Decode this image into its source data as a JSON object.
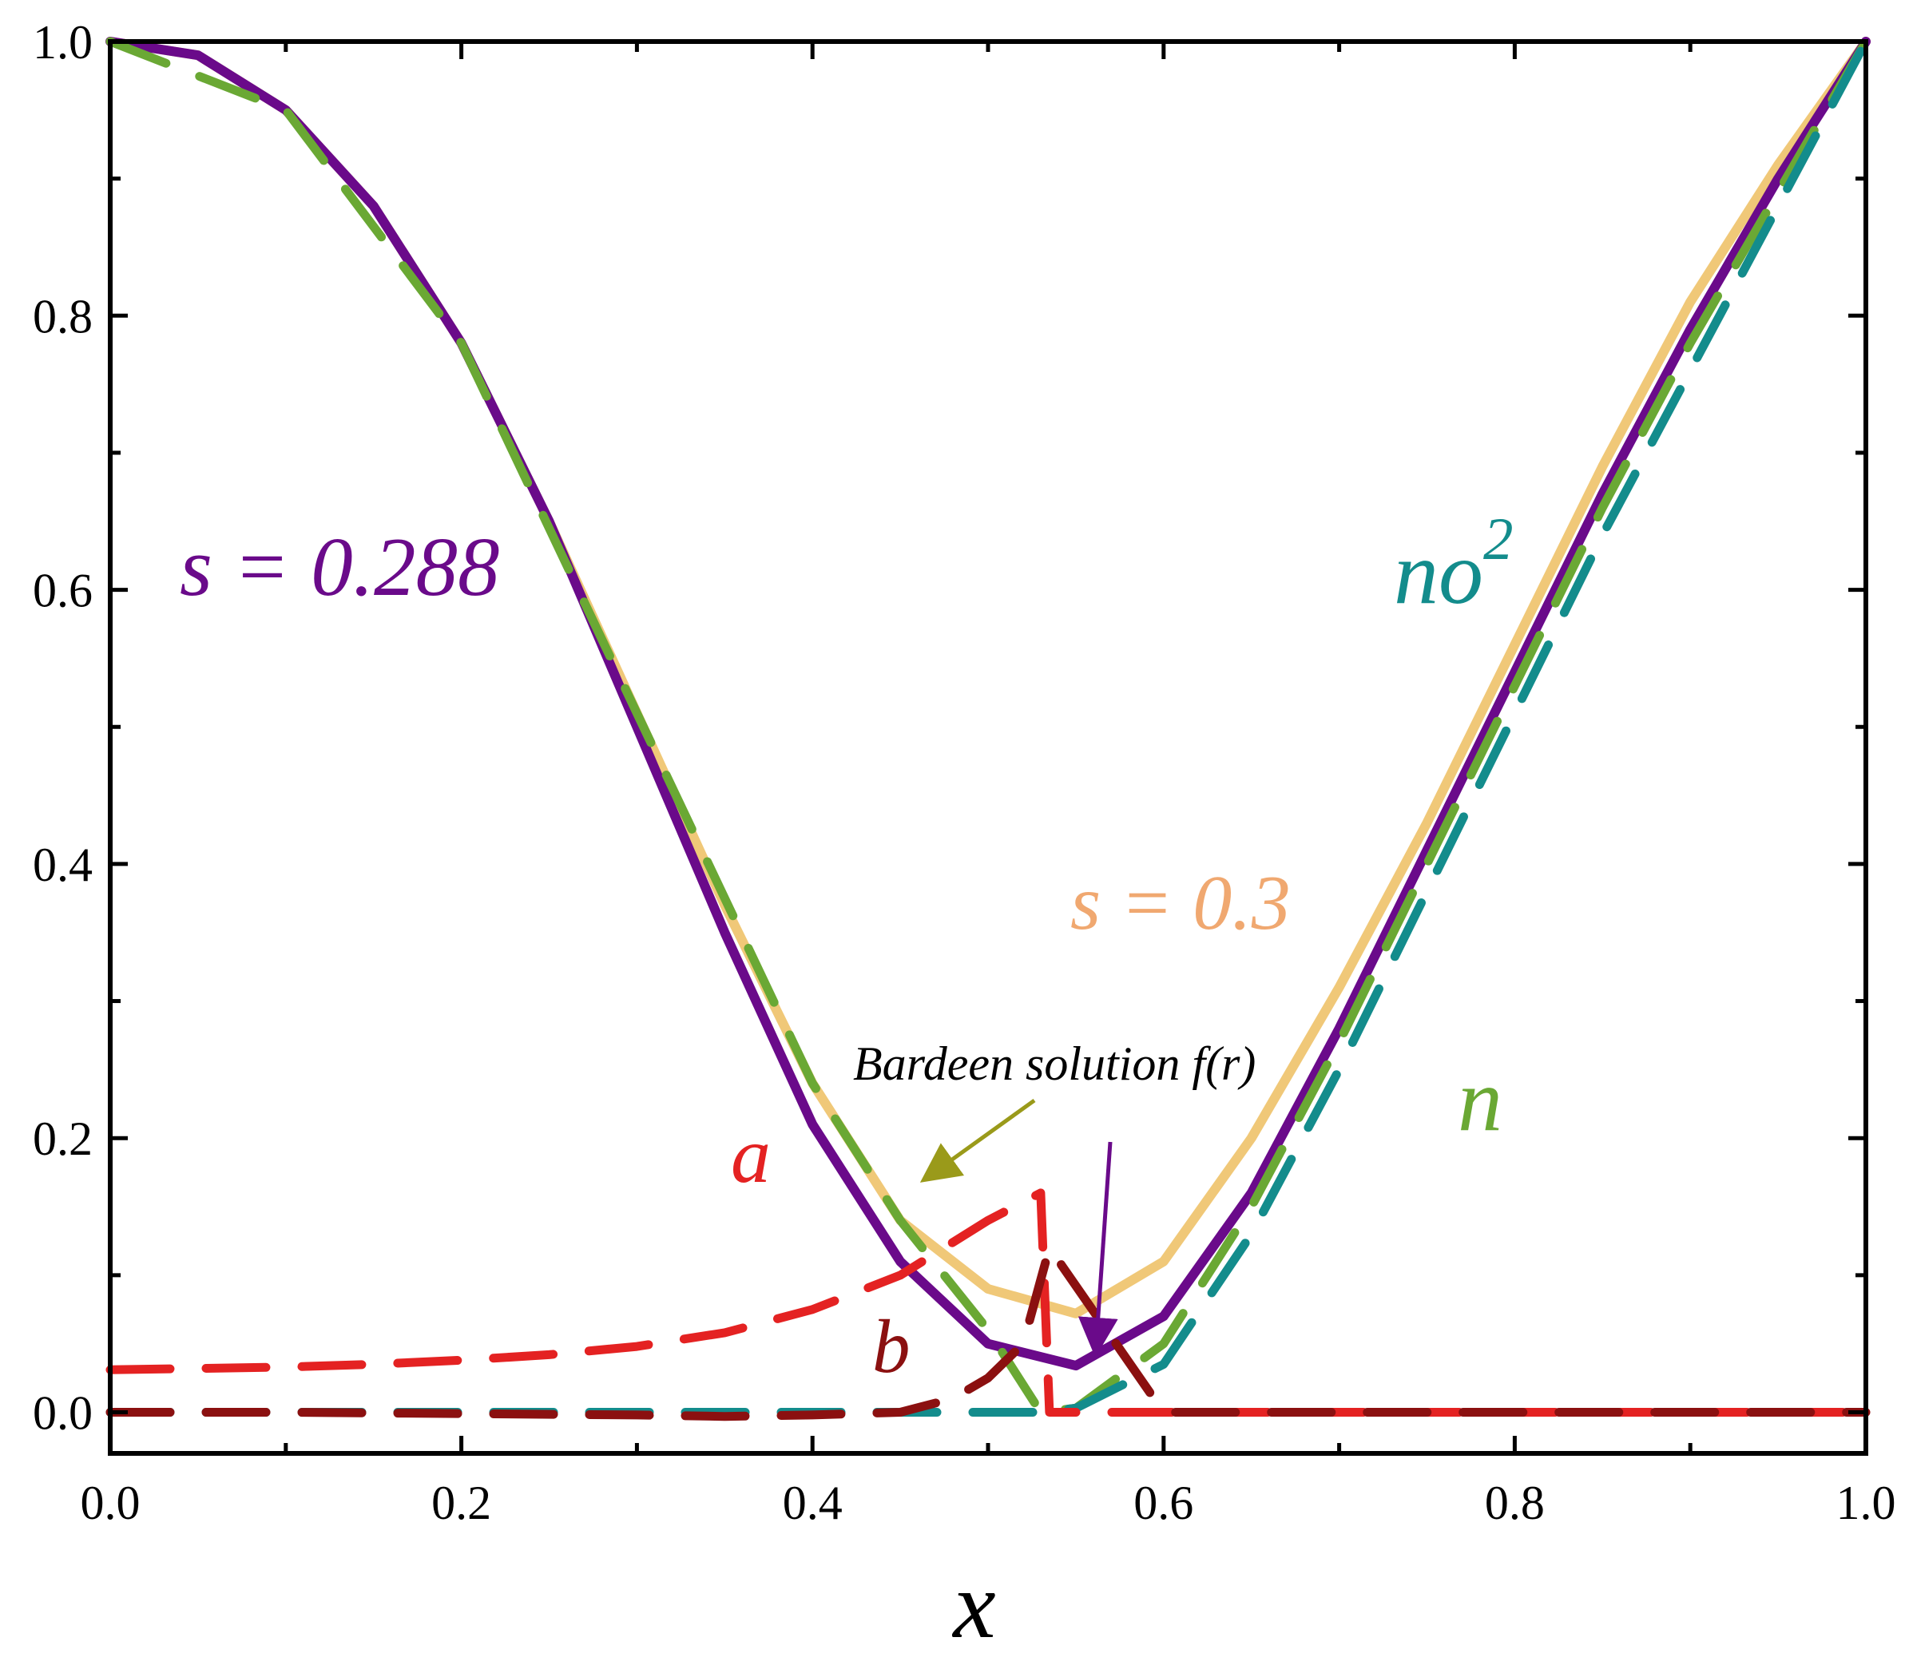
{
  "chart_data": {
    "type": "line",
    "title": "",
    "xlabel": "x",
    "ylabel": "",
    "xlim": [
      0.0,
      1.0
    ],
    "ylim": [
      -0.03,
      1.0
    ],
    "x_ticks": [
      0.0,
      0.2,
      0.4,
      0.6,
      0.8,
      1.0
    ],
    "x_tick_labels": [
      "0.0",
      "0.2",
      "0.4",
      "0.6",
      "0.8",
      "1.0"
    ],
    "y_ticks": [
      0.0,
      0.2,
      0.4,
      0.6,
      0.8,
      1.0
    ],
    "y_tick_labels": [
      "0.0",
      "0.2",
      "0.4",
      "0.6",
      "0.8",
      "1.0"
    ],
    "grid": false,
    "series": [
      {
        "name": "s = 0.3",
        "color": "#f0c878",
        "style": "solid",
        "x": [
          0,
          0.05,
          0.1,
          0.15,
          0.2,
          0.25,
          0.3,
          0.35,
          0.4,
          0.45,
          0.5,
          0.55,
          0.6,
          0.65,
          0.7,
          0.75,
          0.8,
          0.85,
          0.9,
          0.95,
          1.0
        ],
        "y": [
          1.0,
          0.99,
          0.95,
          0.88,
          0.78,
          0.65,
          0.51,
          0.37,
          0.24,
          0.14,
          0.09,
          0.072,
          0.11,
          0.2,
          0.31,
          0.43,
          0.56,
          0.69,
          0.81,
          0.91,
          1.0
        ]
      },
      {
        "name": "s = 0.288",
        "color": "#6a0a8a",
        "style": "solid",
        "x": [
          0,
          0.05,
          0.1,
          0.15,
          0.2,
          0.25,
          0.3,
          0.35,
          0.4,
          0.45,
          0.5,
          0.55,
          0.6,
          0.65,
          0.7,
          0.75,
          0.8,
          0.85,
          0.9,
          0.95,
          1.0
        ],
        "y": [
          1.0,
          0.99,
          0.95,
          0.88,
          0.78,
          0.65,
          0.5,
          0.35,
          0.21,
          0.11,
          0.05,
          0.034,
          0.07,
          0.16,
          0.28,
          0.41,
          0.54,
          0.67,
          0.79,
          0.9,
          1.0
        ]
      },
      {
        "name": "Bardeen solution f(r)",
        "color": "#6aa834",
        "style": "dashed",
        "x": [
          0,
          0.1,
          0.2,
          0.3,
          0.4,
          0.45,
          0.5,
          0.53,
          0.55,
          0.6,
          0.65,
          0.7,
          0.75,
          0.8,
          0.85,
          0.9,
          0.95,
          1.0
        ],
        "y": [
          1.0,
          0.95,
          0.78,
          0.51,
          0.24,
          0.14,
          0.06,
          0.0,
          0.003,
          0.05,
          0.15,
          0.27,
          0.4,
          0.53,
          0.66,
          0.78,
          0.89,
          1.0
        ]
      },
      {
        "name": "no^2",
        "color": "#138c8c",
        "style": "dashed",
        "x": [
          0,
          0.1,
          0.2,
          0.3,
          0.4,
          0.5,
          0.53,
          0.55,
          0.6,
          0.65,
          0.7,
          0.75,
          0.8,
          0.85,
          0.9,
          0.95,
          1.0
        ],
        "y": [
          0,
          0,
          0,
          0,
          0,
          0,
          0.0,
          0.003,
          0.035,
          0.13,
          0.25,
          0.38,
          0.51,
          0.64,
          0.76,
          0.88,
          1.0
        ]
      },
      {
        "name": "a",
        "color": "#e42222",
        "style": "dashed",
        "x": [
          0,
          0.05,
          0.1,
          0.15,
          0.2,
          0.25,
          0.3,
          0.35,
          0.4,
          0.45,
          0.5,
          0.53,
          0.535,
          0.6,
          0.7,
          0.8,
          0.9,
          1.0
        ],
        "y": [
          0.031,
          0.032,
          0.033,
          0.035,
          0.038,
          0.042,
          0.048,
          0.058,
          0.075,
          0.1,
          0.14,
          0.16,
          0.0,
          0.0,
          0.0,
          0.0,
          0.0,
          0.0
        ]
      },
      {
        "name": "b",
        "color": "#8b1010",
        "style": "dashed",
        "x": [
          0,
          0.1,
          0.2,
          0.3,
          0.35,
          0.4,
          0.45,
          0.48,
          0.5,
          0.52,
          0.535,
          0.6,
          0.7,
          0.8,
          0.9,
          1.0
        ],
        "y": [
          0,
          0,
          -0.001,
          -0.002,
          -0.003,
          -0.002,
          0.0,
          0.01,
          0.025,
          0.05,
          0.12,
          0.0,
          0.0,
          0.0,
          0.0,
          0.0
        ]
      }
    ],
    "annotations": {
      "s288": "s = 0.288",
      "s03": "s = 0.3",
      "no2_base": "no",
      "no2_exp": "2",
      "n": "n",
      "a": "a",
      "b": "b",
      "bardeen": "Bardeen solution f(r)"
    }
  }
}
